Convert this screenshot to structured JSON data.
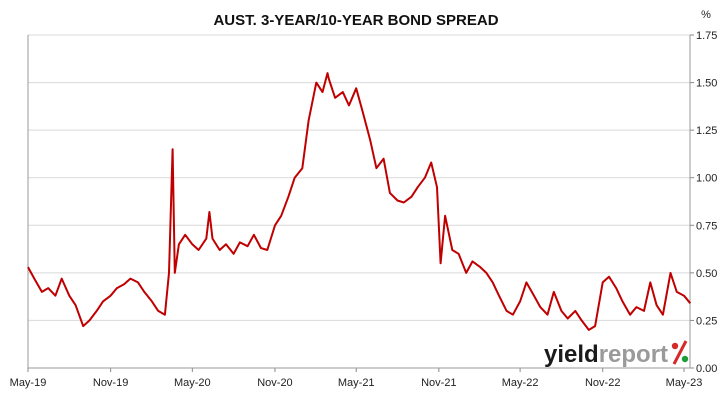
{
  "chart_data": {
    "type": "line",
    "title": "AUST. 3-YEAR/10-YEAR BOND SPREAD",
    "y_unit": "%",
    "ylim": [
      0,
      1.75
    ],
    "y_ticks": [
      "0.00",
      "0.25",
      "0.50",
      "0.75",
      "1.00",
      "1.25",
      "1.50",
      "1.75"
    ],
    "x_ticks": [
      "May-19",
      "Nov-19",
      "May-20",
      "Nov-20",
      "May-21",
      "Nov-21",
      "May-22",
      "Nov-22",
      "May-23"
    ],
    "grid": "horizontal",
    "line_color": "#c00000",
    "series": [
      {
        "x": [
          "2019-05-01",
          "2019-05-15",
          "2019-06-01",
          "2019-06-15",
          "2019-07-01",
          "2019-07-15",
          "2019-08-01",
          "2019-08-15",
          "2019-09-01",
          "2019-09-15",
          "2019-10-01",
          "2019-10-15",
          "2019-11-01",
          "2019-11-15",
          "2019-12-01",
          "2019-12-15",
          "2020-01-01",
          "2020-01-15",
          "2020-02-01",
          "2020-02-15",
          "2020-03-01",
          "2020-03-10",
          "2020-03-18",
          "2020-03-23",
          "2020-04-01",
          "2020-04-15",
          "2020-05-01",
          "2020-05-15",
          "2020-06-01",
          "2020-06-08",
          "2020-06-15",
          "2020-07-01",
          "2020-07-15",
          "2020-08-01",
          "2020-08-15",
          "2020-09-01",
          "2020-09-15",
          "2020-10-01",
          "2020-10-15",
          "2020-11-01",
          "2020-11-15",
          "2020-12-01",
          "2020-12-15",
          "2021-01-01",
          "2021-01-15",
          "2021-02-01",
          "2021-02-15",
          "2021-02-26",
          "2021-03-01",
          "2021-03-15",
          "2021-04-01",
          "2021-04-15",
          "2021-05-01",
          "2021-05-15",
          "2021-06-01",
          "2021-06-15",
          "2021-07-01",
          "2021-07-15",
          "2021-08-01",
          "2021-08-15",
          "2021-09-01",
          "2021-09-15",
          "2021-10-01",
          "2021-10-15",
          "2021-10-28",
          "2021-11-05",
          "2021-11-15",
          "2021-12-01",
          "2021-12-15",
          "2022-01-01",
          "2022-01-15",
          "2022-02-01",
          "2022-02-15",
          "2022-03-01",
          "2022-03-15",
          "2022-04-01",
          "2022-04-15",
          "2022-05-01",
          "2022-05-15",
          "2022-06-01",
          "2022-06-15",
          "2022-07-01",
          "2022-07-15",
          "2022-08-01",
          "2022-08-15",
          "2022-09-01",
          "2022-09-15",
          "2022-10-01",
          "2022-10-15",
          "2022-11-01",
          "2022-11-15",
          "2022-12-01",
          "2022-12-15",
          "2023-01-01",
          "2023-01-15",
          "2023-02-01",
          "2023-02-15",
          "2023-03-01",
          "2023-03-15",
          "2023-04-01",
          "2023-04-15",
          "2023-05-01",
          "2023-05-15"
        ],
        "values": [
          0.53,
          0.47,
          0.4,
          0.42,
          0.38,
          0.47,
          0.38,
          0.33,
          0.22,
          0.25,
          0.3,
          0.35,
          0.38,
          0.42,
          0.44,
          0.47,
          0.45,
          0.4,
          0.35,
          0.3,
          0.28,
          0.5,
          1.15,
          0.5,
          0.65,
          0.7,
          0.65,
          0.62,
          0.68,
          0.82,
          0.68,
          0.62,
          0.65,
          0.6,
          0.66,
          0.64,
          0.7,
          0.63,
          0.62,
          0.75,
          0.8,
          0.9,
          1.0,
          1.05,
          1.3,
          1.5,
          1.45,
          1.55,
          1.52,
          1.42,
          1.45,
          1.38,
          1.47,
          1.35,
          1.2,
          1.05,
          1.1,
          0.92,
          0.88,
          0.87,
          0.9,
          0.95,
          1.0,
          1.08,
          0.95,
          0.55,
          0.8,
          0.62,
          0.6,
          0.5,
          0.56,
          0.53,
          0.5,
          0.45,
          0.38,
          0.3,
          0.28,
          0.35,
          0.45,
          0.38,
          0.32,
          0.28,
          0.4,
          0.3,
          0.26,
          0.3,
          0.25,
          0.2,
          0.22,
          0.45,
          0.48,
          0.42,
          0.35,
          0.28,
          0.32,
          0.3,
          0.45,
          0.33,
          0.28,
          0.5,
          0.4,
          0.38,
          0.34
        ]
      }
    ]
  },
  "logo": {
    "text_main": "yield",
    "text_second": "report",
    "text_pct": "%",
    "color_main": "#1a1a1a",
    "color_second": "#9a9a9a",
    "color_pct_top": "#d42a2a",
    "color_pct_bottom": "#1e9c3a"
  }
}
